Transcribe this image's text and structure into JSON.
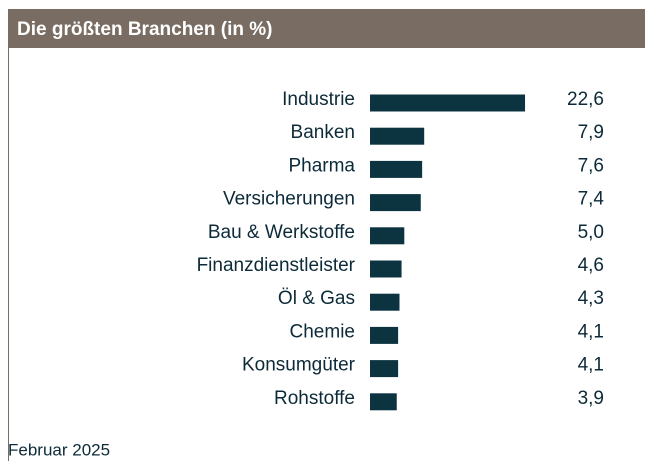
{
  "chart_data": {
    "type": "bar",
    "orientation": "horizontal",
    "title": "Die größten Branchen (in %)",
    "categories": [
      "Industrie",
      "Banken",
      "Pharma",
      "Versicherungen",
      "Bau & Werkstoffe",
      "Finanzdienstleister",
      "Öl & Gas",
      "Chemie",
      "Konsumgüter",
      "Rohstoffe"
    ],
    "values": [
      22.6,
      7.9,
      7.6,
      7.4,
      5.0,
      4.6,
      4.3,
      4.1,
      4.1,
      3.9
    ],
    "value_labels": [
      "22,6",
      "7,9",
      "7,6",
      "7,4",
      "5,0",
      "4,6",
      "4,3",
      "4,1",
      "4,1",
      "3,9"
    ],
    "color": "#0c3440",
    "note": "Februar 2025"
  }
}
